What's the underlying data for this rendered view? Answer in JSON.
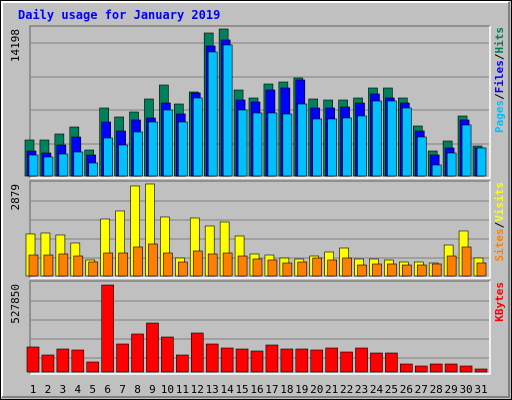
{
  "chart_data": [
    {
      "type": "bar",
      "title": "Daily usage for January 2019",
      "categories": [
        "1",
        "2",
        "3",
        "4",
        "5",
        "6",
        "7",
        "8",
        "9",
        "10",
        "11",
        "12",
        "13",
        "14",
        "15",
        "16",
        "17",
        "18",
        "19",
        "20",
        "21",
        "22",
        "23",
        "24",
        "25",
        "26",
        "27",
        "28",
        "29",
        "30",
        "31"
      ],
      "category_colors": [
        "#000000",
        "#000000",
        "#000000",
        "#000000",
        "#00805c",
        "#00805c",
        "#000000",
        "#000000",
        "#000000",
        "#000000",
        "#000000",
        "#00805c",
        "#00805c",
        "#000000",
        "#000000",
        "#000000",
        "#000000",
        "#000000",
        "#00805c",
        "#00805c",
        "#000000",
        "#000000",
        "#000000",
        "#000000",
        "#000000",
        "#00805c",
        "#00805c",
        "#000000",
        "#000000",
        "#000000",
        "#000000"
      ],
      "legend_separator": "/",
      "ylim": [
        0,
        14198
      ],
      "yticks": [
        14198
      ],
      "grid": false,
      "series": [
        {
          "name": "Hits",
          "color": "#00805c",
          "values": [
            3477,
            3477,
            4057,
            4733,
            2511,
            6568,
            5699,
            6182,
            7437,
            8789,
            6954,
            8113,
            13812,
            14198,
            8306,
            7534,
            8886,
            9079,
            9465,
            7437,
            7340,
            7340,
            7534,
            8500,
            8500,
            7534,
            4829,
            2415,
            3380,
            5795,
            2898
          ]
        },
        {
          "name": "Files",
          "color": "#0000ff",
          "values": [
            2415,
            2222,
            2994,
            3767,
            2028,
            5216,
            4347,
            5410,
            5603,
            7052,
            5989,
            8018,
            12558,
            13138,
            7342,
            7148,
            8308,
            8501,
            9274,
            6569,
            6569,
            6665,
            7052,
            7921,
            7535,
            7052,
            4347,
            2029,
            2705,
            5410,
            2705
          ]
        },
        {
          "name": "Pages",
          "color": "#00c0ff",
          "values": [
            2029,
            1835,
            2125,
            2318,
            1256,
            3671,
            2995,
            4250,
            5216,
            6376,
            5216,
            7535,
            11978,
            12655,
            6376,
            6086,
            6086,
            5989,
            6955,
            5506,
            5506,
            5603,
            5796,
            7245,
            7245,
            6569,
            3767,
            1063,
            2222,
            4927,
            2705
          ]
        }
      ]
    },
    {
      "type": "bar",
      "ylim": [
        0,
        2879
      ],
      "yticks": [
        2879
      ],
      "grid": false,
      "series": [
        {
          "name": "Visits",
          "color": "#ffff00",
          "values": [
            1315,
            1346,
            1283,
            1033,
            501,
            1784,
            2035,
            2817,
            2879,
            1847,
            563,
            1815,
            1565,
            1690,
            1252,
            689,
            657,
            563,
            532,
            626,
            751,
            876,
            532,
            532,
            501,
            438,
            438,
            407,
            970,
            1409,
            563
          ]
        },
        {
          "name": "Sites",
          "color": "#ff8000",
          "values": [
            657,
            657,
            689,
            626,
            438,
            720,
            720,
            908,
            1002,
            720,
            438,
            783,
            689,
            720,
            626,
            532,
            501,
            407,
            438,
            563,
            501,
            563,
            344,
            376,
            376,
            344,
            344,
            376,
            626,
            908,
            407
          ]
        }
      ]
    },
    {
      "type": "bar",
      "ylim": [
        0,
        527850
      ],
      "yticks": [
        527850
      ],
      "grid": false,
      "series": [
        {
          "name": "KBytes",
          "color": "#ff0000",
          "values": [
            151675,
            103139,
            139541,
            133474,
            60670,
            527850,
            169876,
            230546,
            297283,
            212345,
            103139,
            236613,
            169876,
            145608,
            139541,
            127407,
            163809,
            139541,
            139541,
            133474,
            145608,
            121340,
            145608,
            115273,
            115273,
            48536,
            36402,
            48536,
            48536,
            36402,
            18201
          ]
        }
      ]
    }
  ]
}
